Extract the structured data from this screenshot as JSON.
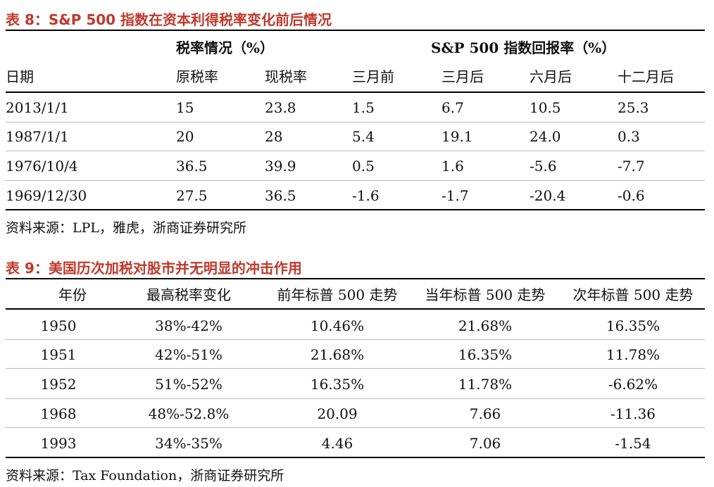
{
  "table8": {
    "title": "表 8：S&P 500 指数在资本利得税率变化前后情况",
    "group1": "税率情况（%）",
    "group2": "S&P 500 指数回报率（%）",
    "headers": [
      "日期",
      "原税率",
      "现税率",
      "三月前",
      "三月后",
      "六月后",
      "十二月后"
    ],
    "rows": [
      [
        "2013/1/1",
        "15",
        "23.8",
        "1.5",
        "6.7",
        "10.5",
        "25.3"
      ],
      [
        "1987/1/1",
        "20",
        "28",
        "5.4",
        "19.1",
        "24.0",
        "0.3"
      ],
      [
        "1976/10/4",
        "36.5",
        "39.9",
        "0.5",
        "1.6",
        "-5.6",
        "-7.7"
      ],
      [
        "1969/12/30",
        "27.5",
        "36.5",
        "-1.6",
        "-1.7",
        "-20.4",
        "-0.6"
      ]
    ],
    "source": "资料来源：LPL，雅虎，浙商证券研究所"
  },
  "table9": {
    "title": "表 9：美国历次加税对股市并无明显的冲击作用",
    "headers": [
      "年份",
      "最高税率变化",
      "前年标普 500 走势",
      "当年标普 500 走势",
      "次年标普 500 走势"
    ],
    "rows": [
      [
        "1950",
        "38%-42%",
        "10.46%",
        "21.68%",
        "16.35%"
      ],
      [
        "1951",
        "42%-51%",
        "21.68%",
        "16.35%",
        "11.78%"
      ],
      [
        "1952",
        "51%-52%",
        "16.35%",
        "11.78%",
        "-6.62%"
      ],
      [
        "1968",
        "48%-52.8%",
        "20.09",
        "7.66",
        "-11.36"
      ],
      [
        "1993",
        "34%-35%",
        "4.46",
        "7.06",
        "-1.54"
      ]
    ],
    "source": "资料来源：Tax Foundation，浙商证券研究所"
  }
}
